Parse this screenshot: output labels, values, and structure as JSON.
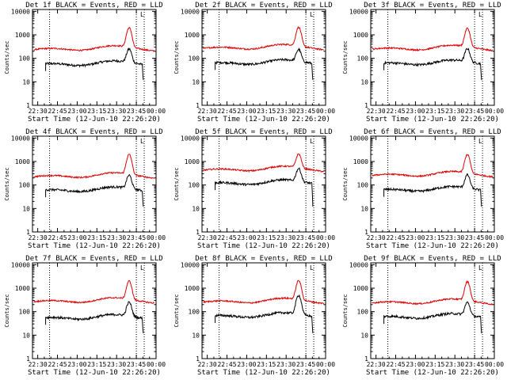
{
  "chart_data": {
    "type": "line",
    "rows": 3,
    "cols": 3,
    "y_scale": "log",
    "ylim": [
      1,
      12000
    ],
    "ylabel": "Counts/sec",
    "xlabel": "Start Time (12-Jun-10 22:26:20)",
    "x_ticks": [
      "22:30",
      "22:45",
      "23:00",
      "23:15",
      "23:30",
      "23:45",
      "00:00"
    ],
    "y_ticks": [
      "1",
      "10",
      "100",
      "1000",
      "10000"
    ],
    "xlim_minutes": [
      0,
      94
    ],
    "dotted_markers_minutes": [
      13,
      79,
      85
    ],
    "legend_glyph": "L",
    "series_colors": {
      "events": "#000000",
      "lld": "#dd0000"
    },
    "panels": [
      {
        "title": "Det 1f BLACK = Events, RED = LLD",
        "events_base": 52,
        "lld_base": 230,
        "events_peak": 250,
        "lld_peak": 2000
      },
      {
        "title": "Det 2f BLACK = Events, RED = LLD",
        "events_base": 58,
        "lld_base": 260,
        "events_peak": 240,
        "lld_peak": 2100
      },
      {
        "title": "Det 3f BLACK = Events, RED = LLD",
        "events_base": 56,
        "lld_base": 240,
        "events_peak": 260,
        "lld_peak": 1900
      },
      {
        "title": "Det 4f BLACK = Events, RED = LLD",
        "events_base": 55,
        "lld_base": 220,
        "events_peak": 260,
        "lld_peak": 2000
      },
      {
        "title": "Det 5f BLACK = Events, RED = LLD",
        "events_base": 110,
        "lld_base": 420,
        "events_peak": 500,
        "lld_peak": 2100
      },
      {
        "title": "Det 6f BLACK = Events, RED = LLD",
        "events_base": 57,
        "lld_base": 250,
        "events_peak": 270,
        "lld_peak": 2000
      },
      {
        "title": "Det 7f BLACK = Events, RED = LLD",
        "events_base": 50,
        "lld_base": 260,
        "events_peak": 250,
        "lld_peak": 2000
      },
      {
        "title": "Det 8f BLACK = Events, RED = LLD",
        "events_base": 60,
        "lld_base": 250,
        "events_peak": 500,
        "lld_peak": 2100
      },
      {
        "title": "Det 9f BLACK = Events, RED = LLD",
        "events_base": 55,
        "lld_base": 230,
        "events_peak": 250,
        "lld_peak": 1900
      }
    ]
  }
}
